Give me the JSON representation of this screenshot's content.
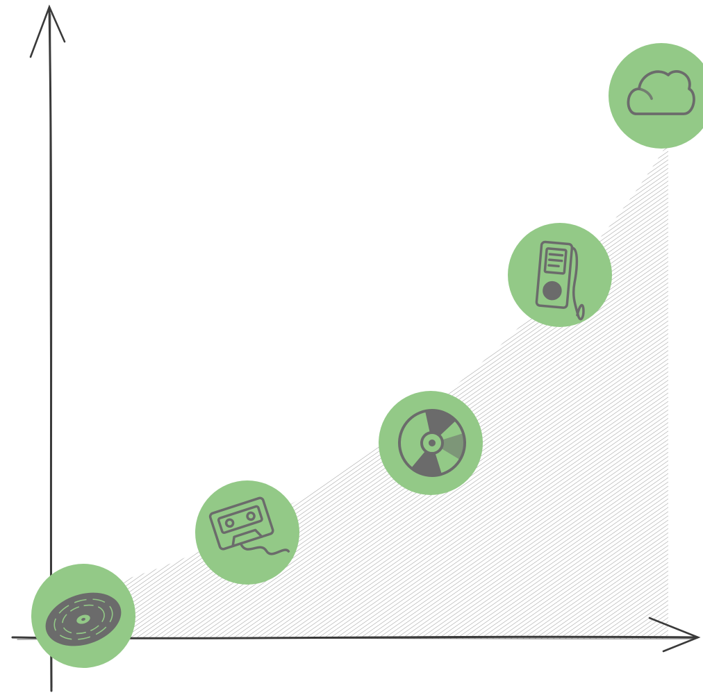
{
  "diagram": {
    "kind": "growth-curve",
    "colors": {
      "background": "#ffffff",
      "axis": "#3a3a3a",
      "hatch": "#9a9a9a",
      "badge": "#93c987",
      "icon": "#6b6b6b"
    },
    "milestones": [
      {
        "order": 1,
        "icon": "vinyl-record-icon"
      },
      {
        "order": 2,
        "icon": "cassette-tape-icon"
      },
      {
        "order": 3,
        "icon": "compact-disc-icon"
      },
      {
        "order": 4,
        "icon": "mp3-player-icon"
      },
      {
        "order": 5,
        "icon": "cloud-icon"
      }
    ]
  }
}
